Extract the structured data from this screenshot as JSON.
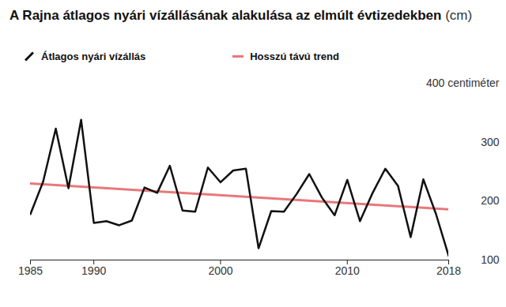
{
  "chart_data": {
    "type": "line",
    "title": "A Rajna átlagos nyári vízállásának alakulása az elmúlt évtizedekben (cm)",
    "x": [
      1985,
      1986,
      1987,
      1988,
      1989,
      1990,
      1991,
      1992,
      1993,
      1994,
      1995,
      1996,
      1997,
      1998,
      1999,
      2000,
      2001,
      2002,
      2003,
      2004,
      2005,
      2006,
      2007,
      2008,
      2009,
      2010,
      2011,
      2012,
      2013,
      2014,
      2015,
      2016,
      2017,
      2018
    ],
    "series": [
      {
        "name": "Átlagos nyári vízállás",
        "color": "#111111",
        "values": [
          178,
          233,
          323,
          222,
          338,
          163,
          166,
          159,
          167,
          223,
          214,
          260,
          184,
          182,
          257,
          232,
          252,
          255,
          120,
          183,
          182,
          212,
          246,
          206,
          176,
          236,
          166,
          214,
          255,
          226,
          139,
          237,
          178,
          107
        ]
      },
      {
        "name": "Hosszú távú trend",
        "color": "#e8787a",
        "x": [
          1985,
          2018
        ],
        "values": [
          230,
          186
        ]
      }
    ],
    "xlim": [
      1985,
      2018
    ],
    "xticks": [
      1985,
      1990,
      2000,
      2010,
      2018
    ],
    "ylim": [
      100,
      400
    ],
    "yticks": [
      100,
      200,
      300,
      {
        "value": 400,
        "label": "400 centiméter"
      }
    ],
    "legend": "top",
    "grid": false
  }
}
